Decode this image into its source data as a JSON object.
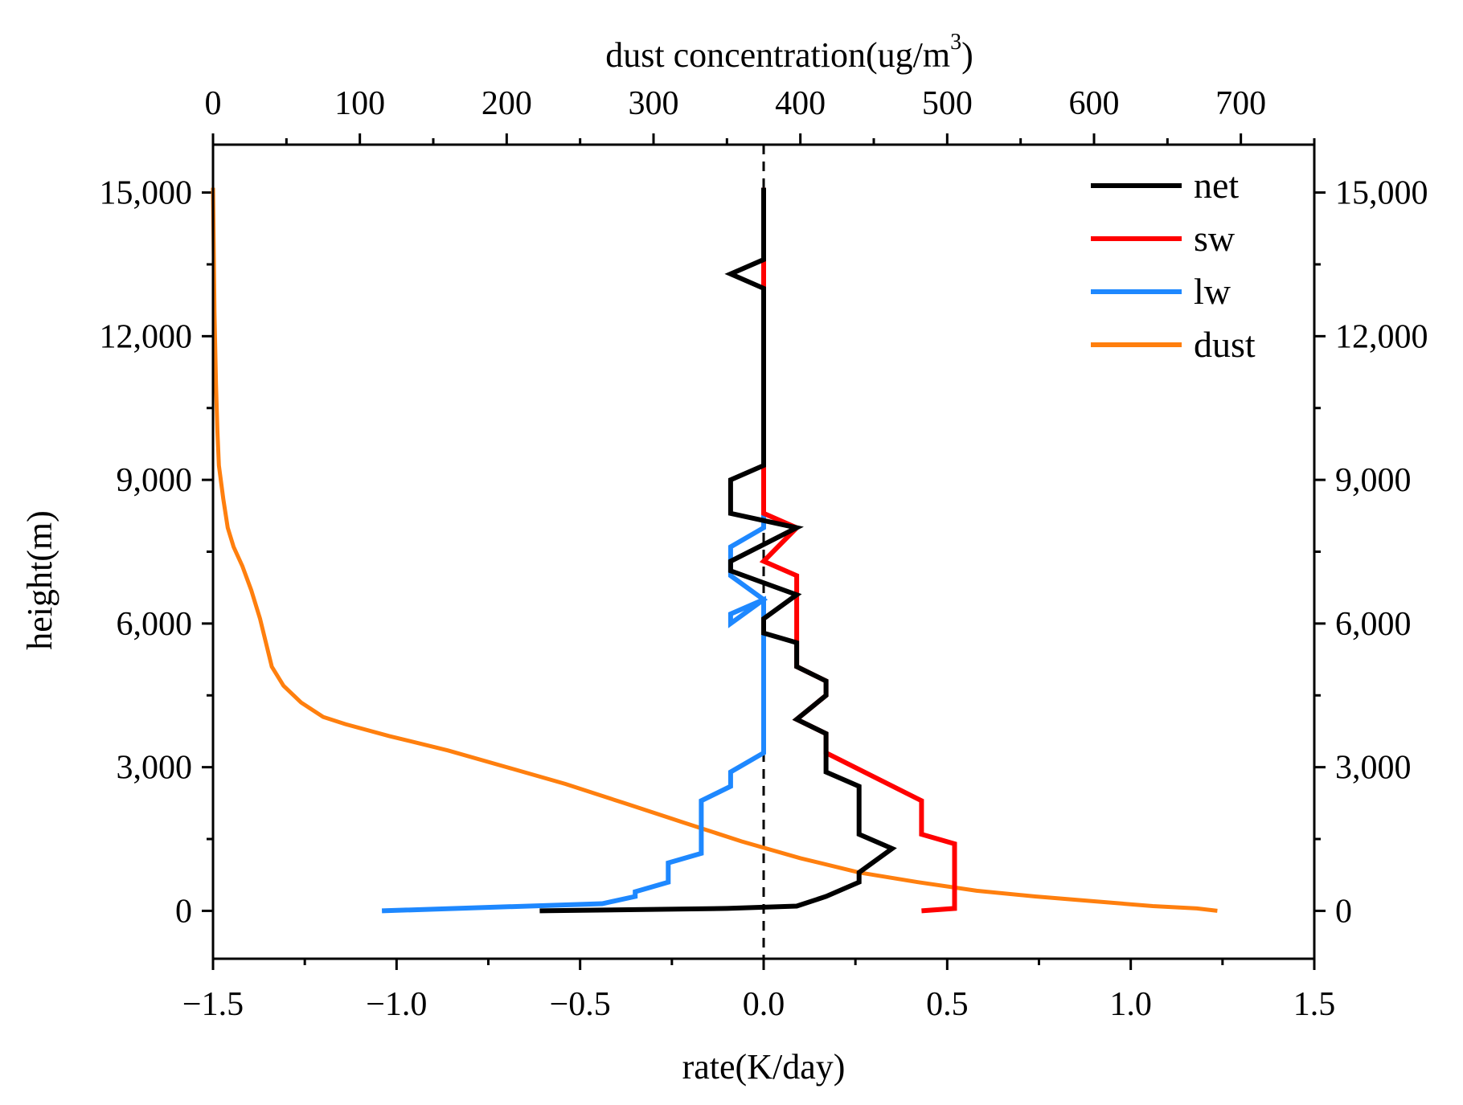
{
  "chart_data": {
    "type": "line",
    "xlabel": "rate(K/day)",
    "x2label": "dust concentration(ug/m",
    "x2label_sup": "3",
    "x2label_suffix": ")",
    "ylabel": "height(m)",
    "xlim": [
      -1.5,
      1.5
    ],
    "x2lim": [
      0,
      750
    ],
    "ylim": [
      -1000,
      16000
    ],
    "x_ticks": [
      -1.5,
      -1.0,
      -0.5,
      0.0,
      0.5,
      1.0,
      1.5
    ],
    "x_tick_labels": [
      "−1.5",
      "−1.0",
      "−0.5",
      "0.0",
      "0.5",
      "1.0",
      "1.5"
    ],
    "x2_ticks": [
      0,
      100,
      200,
      300,
      400,
      500,
      600,
      700
    ],
    "x2_tick_labels": [
      "0",
      "100",
      "200",
      "300",
      "400",
      "500",
      "600",
      "700"
    ],
    "y_ticks": [
      0,
      3000,
      6000,
      9000,
      12000,
      15000
    ],
    "y_tick_labels": [
      "0",
      "3,000",
      "6,000",
      "9,000",
      "12,000",
      "15,000"
    ],
    "y_minor_ticks": [
      1500,
      4500,
      7500,
      10500,
      13500
    ],
    "reference_line_x": 0.0,
    "legend_position": "top-right",
    "series": [
      {
        "name": "net",
        "axis": "bottom",
        "color": "#000000",
        "points": [
          [
            -0.61,
            0
          ],
          [
            -0.1,
            50
          ],
          [
            0.09,
            100
          ],
          [
            0.17,
            300
          ],
          [
            0.26,
            600
          ],
          [
            0.26,
            800
          ],
          [
            0.35,
            1300
          ],
          [
            0.26,
            1600
          ],
          [
            0.26,
            2600
          ],
          [
            0.17,
            2900
          ],
          [
            0.17,
            3000
          ],
          [
            0.17,
            3700
          ],
          [
            0.09,
            4000
          ],
          [
            0.17,
            4500
          ],
          [
            0.17,
            4800
          ],
          [
            0.09,
            5100
          ],
          [
            0.09,
            5600
          ],
          [
            0.0,
            5800
          ],
          [
            0.0,
            6100
          ],
          [
            0.09,
            6600
          ],
          [
            -0.09,
            7100
          ],
          [
            -0.09,
            7300
          ],
          [
            0.09,
            8000
          ],
          [
            -0.09,
            8300
          ],
          [
            -0.09,
            9000
          ],
          [
            0.0,
            9300
          ],
          [
            0.0,
            13000
          ],
          [
            -0.09,
            13300
          ],
          [
            0.0,
            13600
          ],
          [
            0.0,
            15100
          ]
        ]
      },
      {
        "name": "sw",
        "axis": "bottom",
        "color": "#ff0000",
        "points": [
          [
            0.43,
            0
          ],
          [
            0.52,
            50
          ],
          [
            0.52,
            1400
          ],
          [
            0.43,
            1600
          ],
          [
            0.43,
            2300
          ],
          [
            0.17,
            3300
          ],
          [
            0.17,
            3700
          ],
          [
            0.09,
            4000
          ],
          [
            0.17,
            4500
          ],
          [
            0.17,
            4800
          ],
          [
            0.09,
            5100
          ],
          [
            0.09,
            7000
          ],
          [
            0.0,
            7300
          ],
          [
            0.09,
            8000
          ],
          [
            0.0,
            8300
          ],
          [
            0.0,
            9300
          ],
          [
            0.0,
            15100
          ]
        ]
      },
      {
        "name": "lw",
        "axis": "bottom",
        "color": "#1e88ff",
        "points": [
          [
            -1.04,
            0
          ],
          [
            -0.44,
            150
          ],
          [
            -0.35,
            300
          ],
          [
            -0.35,
            400
          ],
          [
            -0.26,
            600
          ],
          [
            -0.26,
            1000
          ],
          [
            -0.17,
            1200
          ],
          [
            -0.17,
            2300
          ],
          [
            -0.09,
            2600
          ],
          [
            -0.09,
            2900
          ],
          [
            0.0,
            3300
          ],
          [
            0.0,
            5300
          ],
          [
            0.0,
            6500
          ],
          [
            -0.09,
            6200
          ],
          [
            -0.09,
            6000
          ],
          [
            0.0,
            6500
          ],
          [
            -0.09,
            7000
          ],
          [
            -0.09,
            7600
          ],
          [
            0.0,
            8000
          ],
          [
            0.0,
            15100
          ]
        ]
      },
      {
        "name": "dust",
        "axis": "top",
        "color": "#ff7f0e",
        "points": [
          [
            684,
            0
          ],
          [
            670,
            50
          ],
          [
            640,
            100
          ],
          [
            600,
            200
          ],
          [
            560,
            300
          ],
          [
            520,
            420
          ],
          [
            480,
            600
          ],
          [
            440,
            800
          ],
          [
            400,
            1100
          ],
          [
            360,
            1450
          ],
          [
            320,
            1850
          ],
          [
            280,
            2250
          ],
          [
            240,
            2650
          ],
          [
            200,
            3000
          ],
          [
            160,
            3350
          ],
          [
            120,
            3650
          ],
          [
            90,
            3900
          ],
          [
            75,
            4050
          ],
          [
            60,
            4350
          ],
          [
            48,
            4700
          ],
          [
            40,
            5100
          ],
          [
            36,
            5600
          ],
          [
            32,
            6100
          ],
          [
            26,
            6700
          ],
          [
            20,
            7200
          ],
          [
            14,
            7600
          ],
          [
            10,
            8000
          ],
          [
            7,
            8600
          ],
          [
            4,
            9300
          ],
          [
            3,
            10000
          ],
          [
            2,
            11000
          ],
          [
            1,
            12500
          ],
          [
            0,
            15100
          ]
        ]
      }
    ]
  }
}
